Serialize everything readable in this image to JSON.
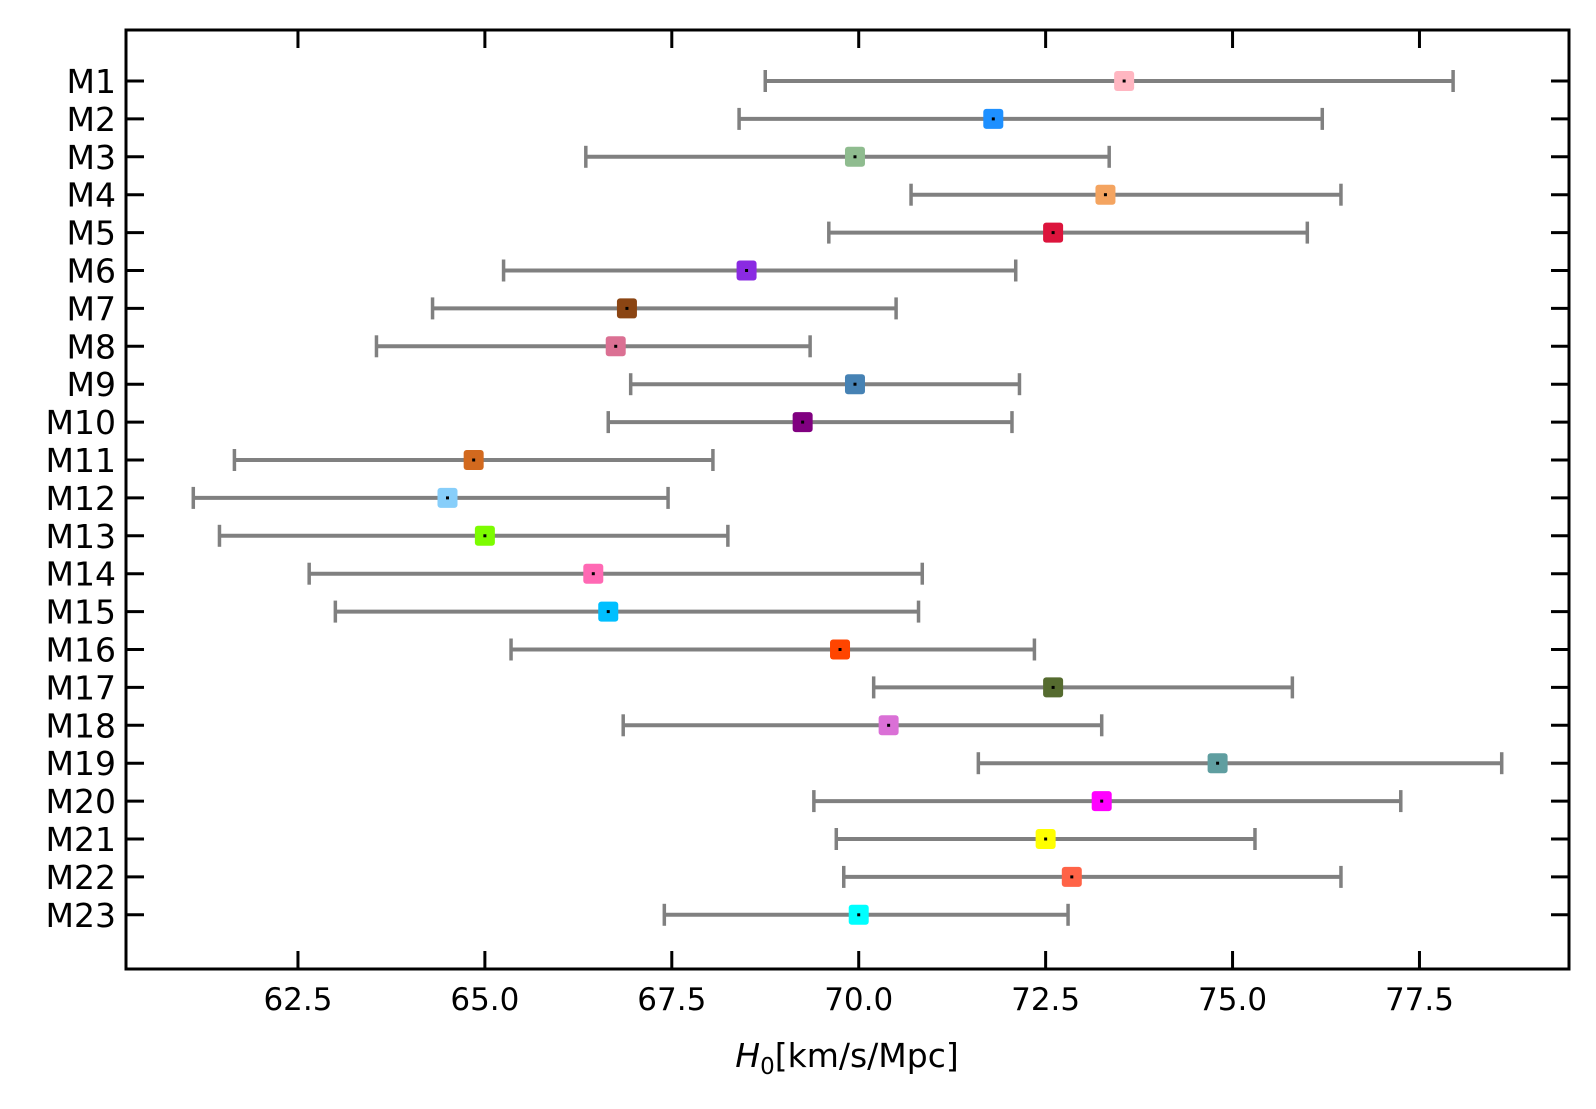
{
  "chart_data": {
    "type": "errorbar",
    "orientation": "horizontal",
    "xlabel_symbol": "H",
    "xlabel_subscript": "0",
    "xlabel_units": "[km/s/Mpc]",
    "xlim": [
      60.2,
      79.5
    ],
    "xticks": [
      62.5,
      65.0,
      67.5,
      70.0,
      72.5,
      75.0,
      77.5
    ],
    "xtick_labels": [
      "62.5",
      "65.0",
      "67.5",
      "70.0",
      "72.5",
      "75.0",
      "77.5"
    ],
    "errorbar_color": "#808080",
    "points": [
      {
        "label": "M1",
        "value": 73.55,
        "low": 68.75,
        "high": 77.95,
        "color": "#FFB6C1"
      },
      {
        "label": "M2",
        "value": 71.8,
        "low": 68.4,
        "high": 76.2,
        "color": "#1E90FF"
      },
      {
        "label": "M3",
        "value": 69.95,
        "low": 66.35,
        "high": 73.35,
        "color": "#8FBC8F"
      },
      {
        "label": "M4",
        "value": 73.3,
        "low": 70.7,
        "high": 76.45,
        "color": "#F4A460"
      },
      {
        "label": "M5",
        "value": 72.6,
        "low": 69.6,
        "high": 76.0,
        "color": "#DC143C"
      },
      {
        "label": "M6",
        "value": 68.5,
        "low": 65.25,
        "high": 72.1,
        "color": "#8A2BE2"
      },
      {
        "label": "M7",
        "value": 66.9,
        "low": 64.3,
        "high": 70.5,
        "color": "#8B4513"
      },
      {
        "label": "M8",
        "value": 66.75,
        "low": 63.55,
        "high": 69.35,
        "color": "#DB7093"
      },
      {
        "label": "M9",
        "value": 69.95,
        "low": 66.95,
        "high": 72.15,
        "color": "#4682B4"
      },
      {
        "label": "M10",
        "value": 69.25,
        "low": 66.65,
        "high": 72.05,
        "color": "#800080"
      },
      {
        "label": "M11",
        "value": 64.85,
        "low": 61.65,
        "high": 68.05,
        "color": "#D2691E"
      },
      {
        "label": "M12",
        "value": 64.5,
        "low": 61.1,
        "high": 67.45,
        "color": "#87CEFA"
      },
      {
        "label": "M13",
        "value": 65.0,
        "low": 61.45,
        "high": 68.25,
        "color": "#7CFC00"
      },
      {
        "label": "M14",
        "value": 66.45,
        "low": 62.65,
        "high": 70.85,
        "color": "#FF69B4"
      },
      {
        "label": "M15",
        "value": 66.65,
        "low": 63.0,
        "high": 70.8,
        "color": "#00BFFF"
      },
      {
        "label": "M16",
        "value": 69.75,
        "low": 65.35,
        "high": 72.35,
        "color": "#FF4500"
      },
      {
        "label": "M17",
        "value": 72.6,
        "low": 70.2,
        "high": 75.8,
        "color": "#556B2F"
      },
      {
        "label": "M18",
        "value": 70.4,
        "low": 66.85,
        "high": 73.25,
        "color": "#DA70D6"
      },
      {
        "label": "M19",
        "value": 74.8,
        "low": 71.6,
        "high": 78.6,
        "color": "#5F9EA0"
      },
      {
        "label": "M20",
        "value": 73.25,
        "low": 69.4,
        "high": 77.25,
        "color": "#FF00FF"
      },
      {
        "label": "M21",
        "value": 72.5,
        "low": 69.7,
        "high": 75.3,
        "color": "#FFFF00"
      },
      {
        "label": "M22",
        "value": 72.85,
        "low": 69.8,
        "high": 76.45,
        "color": "#FF6347"
      },
      {
        "label": "M23",
        "value": 70.0,
        "low": 67.4,
        "high": 72.8,
        "color": "#00FFFF"
      }
    ]
  }
}
